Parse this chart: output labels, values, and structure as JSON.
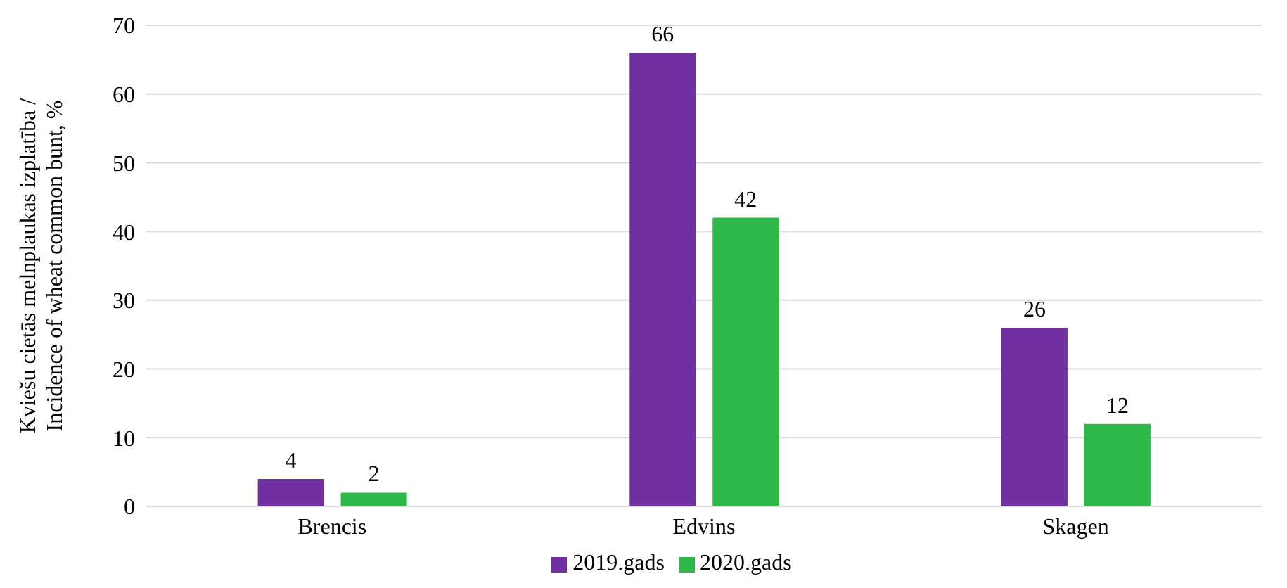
{
  "chart_data": {
    "type": "bar",
    "ylabel": "Kviešu cietās melnplaukas izplatība / Incidence of wheat common bunt, %",
    "categories": [
      "Brencis",
      "Edvins",
      "Skagen"
    ],
    "series": [
      {
        "name": "2019.gads",
        "color": "#7030a0",
        "values": [
          4,
          66,
          26
        ]
      },
      {
        "name": "2020.gads",
        "color": "#2eb84a",
        "values": [
          2,
          42,
          12
        ]
      }
    ],
    "ylim": [
      0,
      70
    ],
    "yticks": [
      0,
      10,
      20,
      30,
      40,
      50,
      60,
      70
    ],
    "grid": "y",
    "legend": "bottom",
    "data_labels": true
  }
}
